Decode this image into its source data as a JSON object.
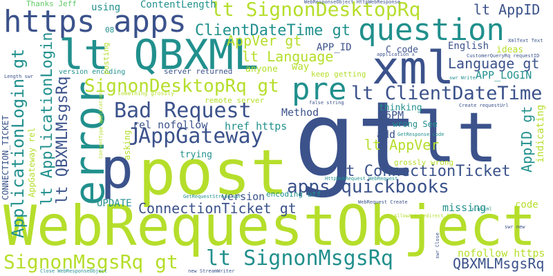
{
  "palette": {
    "dark": "#3b528b",
    "teal": "#21908d",
    "green": "#5ec962",
    "lime": "#b5de2b",
    "purple": "#482878",
    "navy": "#31688e"
  },
  "words": [
    {
      "id": "gt",
      "text": "gt",
      "color": "#3b528b"
    },
    {
      "id": "lt",
      "text": "lt",
      "color": "#3b528b"
    },
    {
      "id": "webrequestobject",
      "text": "WebRequestObject",
      "color": "#b5de2b"
    },
    {
      "id": "post",
      "text": "post",
      "color": "#b5de2b"
    },
    {
      "id": "xml",
      "text": "xml",
      "color": "#3b528b"
    },
    {
      "id": "lt-qbxml",
      "text": "lt QBXML",
      "color": "#21908d"
    },
    {
      "id": "error",
      "text": "error",
      "color": "#21908d"
    },
    {
      "id": "p",
      "text": "p",
      "color": "#3b528b"
    },
    {
      "id": "https-apps",
      "text": "https apps",
      "color": "#3b528b"
    },
    {
      "id": "question",
      "text": "question",
      "color": "#21908d"
    },
    {
      "id": "pre",
      "text": "pre",
      "color": "#21908d"
    },
    {
      "id": "bad-request",
      "text": "Bad Request",
      "color": "#3b528b"
    },
    {
      "id": "appgateway",
      "text": "AppGateway",
      "color": "#3b528b"
    },
    {
      "id": "lt-signondesktoprq",
      "text": "lt SignonDesktopRq",
      "color": "#b5de2b"
    },
    {
      "id": "lt-clientdatetime",
      "text": "lt ClientDateTime",
      "color": "#3b528b"
    },
    {
      "id": "signondesktoprq-gt",
      "text": "SignonDesktopRq gt",
      "color": "#b5de2b"
    },
    {
      "id": "clientdatetime-gt",
      "text": "ClientDateTime gt",
      "color": "#21908d"
    },
    {
      "id": "lt-signonmsgsrq",
      "text": "lt SignonMsgsRq",
      "color": "#21908d"
    },
    {
      "id": "signonmsgsrq-gt",
      "text": "SignonMsgsRq gt",
      "color": "#b5de2b"
    },
    {
      "id": "apps-quickbooks",
      "text": "apps quickbooks",
      "color": "#3b528b"
    },
    {
      "id": "lt-connectionticket",
      "text": "lt ConnectionTicket",
      "color": "#3b528b"
    },
    {
      "id": "connectionticket-gt",
      "text": "ConnectionTicket gt",
      "color": "#3b528b"
    },
    {
      "id": "applicationlogin-gt",
      "text": "ApplicationLogin gt",
      "color": "#21908d"
    },
    {
      "id": "lt-applicationlogin",
      "text": "lt ApplicationLogin",
      "color": "#21908d"
    },
    {
      "id": "lt-qbxmlmsgsrq",
      "text": "lt QBXMLMsgsRq",
      "color": "#3b528b"
    },
    {
      "id": "qbxmlmsgsrq-gt",
      "text": "QBXMLMsgsRq gt",
      "color": "#3b528b"
    },
    {
      "id": "lt-appid",
      "text": "lt AppID",
      "color": "#3b528b"
    },
    {
      "id": "appid-gt",
      "text": "AppID gt",
      "color": "#21908d"
    },
    {
      "id": "lt-appver",
      "text": "lt AppVer",
      "color": "#b5de2b"
    },
    {
      "id": "appver-gt",
      "text": "AppVer gt",
      "color": "#b5de2b"
    },
    {
      "id": "lt-language",
      "text": "lt Language",
      "color": "#b5de2b"
    },
    {
      "id": "language-gt",
      "text": "Language gt",
      "color": "#3b528b"
    },
    {
      "id": "j",
      "text": "j",
      "color": "#3b528b"
    },
    {
      "id": "version",
      "text": "version",
      "color": "#3b528b"
    },
    {
      "id": "update",
      "text": "UPDATE",
      "color": "#21908d"
    },
    {
      "id": "missing",
      "text": "missing",
      "color": "#21908d"
    },
    {
      "id": "code",
      "text": "code",
      "color": "#b5de2b"
    },
    {
      "id": "nofollow-https",
      "text": "nofollow https",
      "color": "#b5de2b"
    },
    {
      "id": "rel-nofollow",
      "text": "rel nofollow",
      "color": "#3b528b"
    },
    {
      "id": "href-https",
      "text": "href https",
      "color": "#21908d"
    },
    {
      "id": "method",
      "text": "Method",
      "color": "#3b528b"
    },
    {
      "id": "36pm",
      "text": "36PM",
      "color": "#3b528b"
    },
    {
      "id": "add",
      "text": "add",
      "color": "#3b528b"
    },
    {
      "id": "thinking",
      "text": "thinking",
      "color": "#21908d"
    },
    {
      "id": "wrong-see",
      "text": "wrong See",
      "color": "#21908d"
    },
    {
      "id": "grossly-wrong",
      "text": "grossly wrong",
      "color": "#b5de2b"
    },
    {
      "id": "app-id",
      "text": "APP_ID",
      "color": "#3b528b"
    },
    {
      "id": "app-login",
      "text": "APP_LOGIN",
      "color": "#21908d"
    },
    {
      "id": "c-code",
      "text": "C code",
      "color": "#3b528b"
    },
    {
      "id": "english",
      "text": "English",
      "color": "#3b528b"
    },
    {
      "id": "ideas",
      "text": "ideas",
      "color": "#b5de2b"
    },
    {
      "id": "anyone",
      "text": "anyone",
      "color": "#b5de2b"
    },
    {
      "id": "way",
      "text": "way",
      "color": "#b5de2b"
    },
    {
      "id": "keep-getting",
      "text": "keep getting",
      "color": "#b5de2b"
    },
    {
      "id": "server-returned",
      "text": "server returned",
      "color": "#3b528b"
    },
    {
      "id": "remote-server",
      "text": "remote server",
      "color": "#b5de2b"
    },
    {
      "id": "something-grossly",
      "text": "something grossly",
      "color": "#b5de2b"
    },
    {
      "id": "version-encoding",
      "text": "version encoding",
      "color": "#21908d"
    },
    {
      "id": "asking",
      "text": "asking",
      "color": "#b5de2b"
    },
    {
      "id": "trying",
      "text": "trying",
      "color": "#21908d"
    },
    {
      "id": "encoding-utf",
      "text": "encoding utf",
      "color": "#21908d"
    },
    {
      "id": "indicating",
      "text": "indicating",
      "color": "#b5de2b"
    },
    {
      "id": "thanks-jeff",
      "text": "Thanks Jeff",
      "color": "#5ec962"
    },
    {
      "id": "using",
      "text": "using",
      "color": "#21908d"
    },
    {
      "id": "contentlength",
      "text": "ContentLength",
      "color": "#21908d"
    },
    {
      "id": "connection-ticket",
      "text": "CONNECTION_TICKET",
      "color": "#3b528b"
    },
    {
      "id": "appgateway-rel",
      "text": "AppGateway rel",
      "color": "#b5de2b"
    },
    {
      "id": "posting",
      "text": "posting",
      "color": "#b5de2b"
    },
    {
      "id": "s-08",
      "text": "08",
      "color": "#21908d"
    },
    {
      "id": "s-webresponseobject-httpwebresponse",
      "text": "WebResponseObject HttpWebResponse",
      "color": "#3b528b"
    },
    {
      "id": "s-xmltext-text",
      "text": "XmlText Text",
      "color": "#3b528b"
    },
    {
      "id": "s-application-x",
      "text": "application x",
      "color": "#3b528b"
    },
    {
      "id": "s-customerqueryrq-requestid",
      "text": "CustomerQueryRq requestID",
      "color": "#3b528b"
    },
    {
      "id": "s-swr-write",
      "text": "swr Write",
      "color": "#21908d"
    },
    {
      "id": "s-length-swr",
      "text": "Length swr",
      "color": "#3b528b"
    },
    {
      "id": "s-false-string",
      "text": "false string",
      "color": "#3b528b"
    },
    {
      "id": "s-create-requesturl",
      "text": "Create requestUrl",
      "color": "#3b528b"
    },
    {
      "id": "s-getresponse-code",
      "text": "GetResponse code",
      "color": "#21908d"
    },
    {
      "id": "s-contenttype-application",
      "text": "ContentType application",
      "color": "#b5de2b"
    },
    {
      "id": "s-httpwebrequest-webrequest",
      "text": "HttpWebRequest WebRequest",
      "color": "#21908d"
    },
    {
      "id": "s-getrequeststream-swr",
      "text": "GetRequestStream swr",
      "color": "#21908d"
    },
    {
      "id": "s-webrequest-create",
      "text": "WebRequest Create",
      "color": "#3b528b"
    },
    {
      "id": "s-x-qbxml",
      "text": "x qbxml",
      "color": "#21908d"
    },
    {
      "id": "s-allowautoredirect-false",
      "text": "AllowAutoRedirect false",
      "color": "#b5de2b"
    },
    {
      "id": "s-swr-new",
      "text": "swr new",
      "color": "#3b528b"
    },
    {
      "id": "s-swr-close",
      "text": "swr Close",
      "color": "#3b528b"
    },
    {
      "id": "s-close-webresponseobject",
      "text": "Close WebResponseObject",
      "color": "#21908d"
    },
    {
      "id": "s-new-streamwriter",
      "text": "new StreamWriter",
      "color": "#3b528b"
    }
  ]
}
